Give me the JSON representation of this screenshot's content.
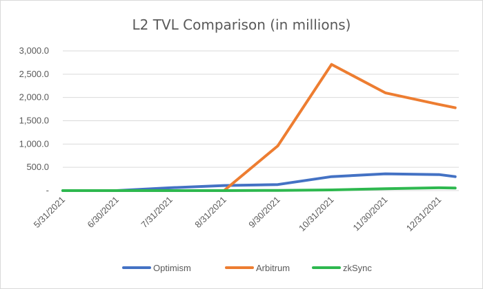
{
  "chart_data": {
    "type": "line",
    "title": "L2 TVL Comparison (in millions)",
    "xlabel": "",
    "ylabel": "",
    "ylim": [
      0,
      3000
    ],
    "y_ticks": [
      "-",
      "500.0",
      "1,000.0",
      "1,500.0",
      "2,000.0",
      "2,500.0",
      "3,000.0"
    ],
    "categories": [
      "5/31/2021",
      "6/30/2021",
      "7/31/2021",
      "8/31/2021",
      "9/30/2021",
      "10/31/2021",
      "11/30/2021",
      "12/31/2021"
    ],
    "x_range": [
      0,
      7.3
    ],
    "series": [
      {
        "name": "Optimism",
        "color": "#4472C4",
        "x": [
          0,
          1,
          2,
          3,
          4,
          5,
          6,
          7,
          7.3
        ],
        "values": [
          0,
          0,
          60,
          110,
          130,
          300,
          360,
          345,
          300
        ]
      },
      {
        "name": "Arbitrum",
        "color": "#ED7D31",
        "x": [
          3,
          4,
          5,
          6,
          7,
          7.3
        ],
        "values": [
          0,
          960,
          2710,
          2100,
          1850,
          1780
        ]
      },
      {
        "name": "zkSync",
        "color": "#2EB84F",
        "x": [
          0,
          1,
          2,
          3,
          4,
          5,
          6,
          7,
          7.3
        ],
        "values": [
          0,
          0,
          0,
          0,
          5,
          15,
          40,
          60,
          55
        ]
      }
    ],
    "grid": true,
    "legend": "bottom"
  }
}
